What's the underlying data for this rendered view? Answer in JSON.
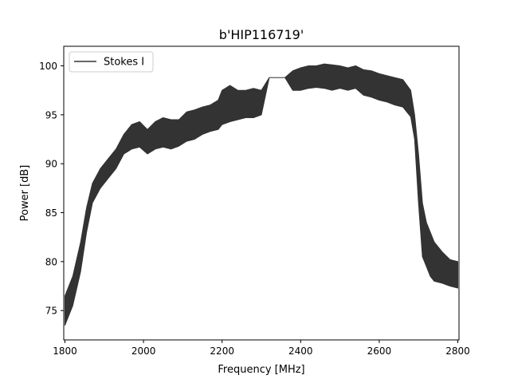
{
  "chart_data": {
    "type": "line",
    "title": "b'HIP116719'",
    "xlabel": "Frequency [MHz]",
    "ylabel": "Power [dB]",
    "xlim": [
      1797,
      2803
    ],
    "ylim": [
      72,
      102
    ],
    "xticks": [
      1800,
      2000,
      2200,
      2400,
      2600,
      2800
    ],
    "yticks": [
      75,
      80,
      85,
      90,
      95,
      100
    ],
    "grid": false,
    "legend": {
      "position": "upper-left"
    },
    "series": [
      {
        "name": "Stokes I",
        "color": "#333333",
        "note_style": "dense oscillating spectrum drawn as min/max envelope",
        "x": [
          1800,
          1820,
          1840,
          1855,
          1870,
          1890,
          1910,
          1930,
          1950,
          1970,
          1990,
          2010,
          2030,
          2050,
          2070,
          2090,
          2110,
          2130,
          2150,
          2170,
          2190,
          2200,
          2220,
          2240,
          2260,
          2280,
          2300,
          2320,
          2360,
          2380,
          2400,
          2420,
          2440,
          2460,
          2480,
          2500,
          2520,
          2540,
          2560,
          2580,
          2600,
          2620,
          2640,
          2660,
          2680,
          2690,
          2700,
          2710,
          2720,
          2730,
          2740,
          2760,
          2780,
          2800
        ],
        "upper": [
          76.5,
          78.5,
          82,
          85.5,
          88,
          89.5,
          90.5,
          91.5,
          93,
          94,
          94.3,
          93.5,
          94.3,
          94.7,
          94.5,
          94.5,
          95.3,
          95.5,
          95.8,
          96,
          96.5,
          97.5,
          98,
          97.5,
          97.5,
          97.7,
          97.5,
          98.8,
          98.8,
          99.5,
          99.8,
          100,
          100,
          100.2,
          100.1,
          100,
          99.8,
          100,
          99.6,
          99.5,
          99.2,
          99,
          98.8,
          98.6,
          97.5,
          95,
          91,
          86,
          84,
          83,
          82,
          81,
          80.2,
          80
        ],
        "lower": [
          73.5,
          75.5,
          79,
          83,
          86,
          87.5,
          88.5,
          89.5,
          91,
          91.5,
          91.7,
          91,
          91.5,
          91.7,
          91.5,
          91.8,
          92.3,
          92.5,
          93,
          93.3,
          93.5,
          94,
          94.3,
          94.5,
          94.7,
          94.7,
          95,
          98.8,
          98.8,
          97.5,
          97.5,
          97.7,
          97.8,
          97.7,
          97.5,
          97.7,
          97.5,
          97.7,
          97,
          96.8,
          96.5,
          96.3,
          96,
          95.8,
          94.8,
          92.5,
          86,
          80.5,
          79.5,
          78.5,
          78,
          77.8,
          77.5,
          77.3
        ]
      }
    ]
  }
}
